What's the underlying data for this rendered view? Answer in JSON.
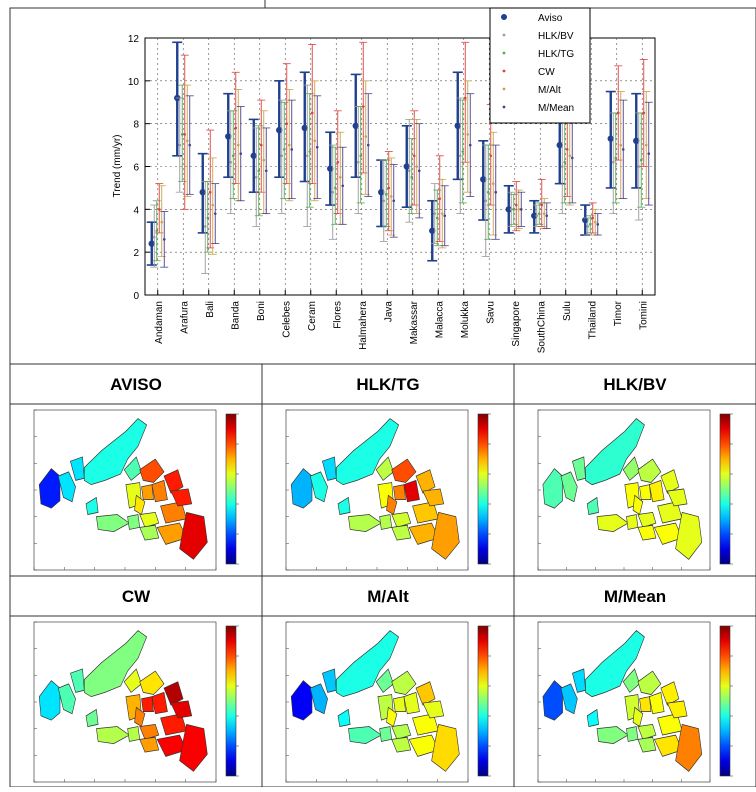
{
  "chart_data": [
    {
      "type": "errorbar",
      "ylabel": "Trend (mm/yr)",
      "ylim": [
        0,
        12
      ],
      "yticks": [
        0,
        2,
        4,
        6,
        8,
        10,
        12
      ],
      "grid": true,
      "legend_position": "top-right",
      "categories": [
        "Andaman",
        "Arafura",
        "Bali",
        "Banda",
        "Boni",
        "Celebes",
        "Ceram",
        "Flores",
        "Halmahera",
        "Java",
        "Makassar",
        "Malacca",
        "Molukka",
        "Savu",
        "Singapore",
        "SouthChina",
        "Sulu",
        "Thailand",
        "Timor",
        "Tomini"
      ],
      "series": [
        {
          "name": "Aviso",
          "color": "#1f3f8f",
          "values": [
            2.4,
            9.2,
            4.8,
            7.4,
            6.5,
            7.7,
            7.8,
            5.9,
            7.9,
            4.8,
            6.0,
            3.0,
            7.9,
            5.4,
            4.0,
            3.7,
            7.0,
            3.5,
            7.3,
            7.2
          ],
          "lower": [
            1.4,
            6.5,
            2.9,
            5.5,
            4.8,
            5.5,
            5.3,
            4.2,
            5.5,
            3.2,
            4.1,
            1.6,
            5.4,
            3.5,
            2.9,
            2.9,
            5.2,
            2.8,
            5.0,
            5.0
          ],
          "upper": [
            3.4,
            11.8,
            6.6,
            9.4,
            8.2,
            10.0,
            10.4,
            7.6,
            10.3,
            6.3,
            7.9,
            4.4,
            10.4,
            7.2,
            5.1,
            4.4,
            8.8,
            4.2,
            9.5,
            9.4
          ]
        },
        {
          "name": "HLK/BV",
          "color": "#9a9a9a",
          "values": [
            2.7,
            7.0,
            3.2,
            6.2,
            5.5,
            6.5,
            6.5,
            4.8,
            6.2,
            4.4,
            5.8,
            3.8,
            6.5,
            4.4,
            4.0,
            3.7,
            6.0,
            3.2,
            6.2,
            6.0
          ],
          "lower": [
            1.3,
            4.8,
            1.0,
            3.8,
            3.2,
            3.8,
            3.2,
            2.6,
            3.8,
            2.5,
            3.4,
            2.4,
            3.8,
            1.8,
            3.2,
            3.2,
            3.8,
            2.8,
            3.8,
            3.5
          ],
          "upper": [
            4.2,
            9.2,
            5.3,
            8.6,
            7.8,
            9.1,
            9.8,
            7.0,
            8.8,
            6.3,
            8.2,
            5.2,
            9.2,
            7.0,
            4.8,
            4.2,
            8.3,
            3.6,
            8.5,
            8.5
          ]
        },
        {
          "name": "HLK/TG",
          "color": "#55aa55",
          "values": [
            3.0,
            7.5,
            3.6,
            6.5,
            5.8,
            6.8,
            6.7,
            5.0,
            6.5,
            4.7,
            5.5,
            3.6,
            6.7,
            4.8,
            4.0,
            3.8,
            6.2,
            3.3,
            6.4,
            6.3
          ],
          "lower": [
            1.6,
            5.3,
            2.0,
            4.5,
            3.7,
            4.5,
            4.1,
            3.3,
            4.3,
            3.2,
            3.8,
            2.3,
            4.3,
            2.6,
            3.3,
            3.3,
            4.3,
            2.9,
            4.3,
            4.1
          ],
          "upper": [
            4.4,
            9.8,
            5.3,
            8.6,
            7.9,
            9.0,
            9.4,
            6.9,
            8.8,
            6.3,
            7.3,
            4.9,
            9.1,
            7.0,
            4.7,
            4.3,
            8.2,
            3.7,
            8.5,
            8.5
          ]
        },
        {
          "name": "CW",
          "color": "#e0403c",
          "values": [
            4.0,
            7.5,
            4.8,
            7.8,
            7.0,
            8.0,
            8.5,
            6.2,
            8.8,
            5.0,
            6.5,
            4.5,
            9.2,
            6.5,
            4.2,
            4.2,
            6.8,
            3.6,
            8.5,
            8.5
          ],
          "lower": [
            2.9,
            4.0,
            2.2,
            5.2,
            4.8,
            5.2,
            5.2,
            3.8,
            5.7,
            3.0,
            4.2,
            2.5,
            6.2,
            4.2,
            3.0,
            3.2,
            4.6,
            2.9,
            6.3,
            6.0
          ],
          "upper": [
            5.2,
            11.2,
            7.7,
            10.4,
            9.1,
            10.8,
            11.7,
            8.6,
            11.8,
            6.7,
            8.6,
            6.5,
            11.8,
            8.9,
            5.3,
            5.4,
            9.2,
            4.3,
            10.7,
            11.0
          ]
        },
        {
          "name": "M/Alt",
          "color": "#c9a24a",
          "values": [
            3.4,
            7.2,
            4.2,
            7.0,
            6.3,
            7.0,
            7.2,
            5.5,
            7.4,
            4.6,
            6.0,
            3.8,
            7.5,
            5.2,
            4.0,
            3.8,
            6.5,
            3.4,
            7.0,
            7.0
          ],
          "lower": [
            1.8,
            4.6,
            1.9,
            4.4,
            3.8,
            4.4,
            4.4,
            3.3,
            4.7,
            2.8,
            3.8,
            2.2,
            4.8,
            2.8,
            3.1,
            3.1,
            4.2,
            2.8,
            4.5,
            4.5
          ],
          "upper": [
            5.1,
            9.8,
            6.4,
            9.6,
            8.6,
            9.6,
            10.0,
            7.6,
            10.0,
            6.4,
            8.2,
            5.4,
            10.0,
            7.6,
            4.9,
            4.5,
            8.8,
            4.0,
            9.5,
            9.5
          ]
        },
        {
          "name": "M/Mean",
          "color": "#4b3f8f",
          "values": [
            2.6,
            7.0,
            3.8,
            6.6,
            5.8,
            6.8,
            6.9,
            5.1,
            7.0,
            4.4,
            5.8,
            3.7,
            7.0,
            4.8,
            4.0,
            3.7,
            6.4,
            3.3,
            6.8,
            6.6
          ],
          "lower": [
            1.3,
            4.7,
            2.4,
            4.4,
            3.8,
            4.5,
            4.5,
            3.3,
            4.6,
            2.7,
            3.6,
            2.3,
            4.6,
            2.6,
            3.2,
            3.1,
            4.3,
            2.8,
            4.5,
            4.2
          ],
          "upper": [
            3.9,
            9.3,
            5.2,
            8.8,
            7.8,
            9.1,
            9.3,
            6.9,
            9.4,
            6.1,
            8.0,
            5.1,
            9.4,
            7.0,
            4.8,
            4.3,
            8.5,
            3.8,
            9.1,
            9.0
          ]
        }
      ]
    },
    {
      "type": "map-panels",
      "panels": [
        {
          "title": "AVISO",
          "values": {
            "Andaman": 1.5,
            "Malacca": 3.5,
            "SouthChina": 4.0,
            "Thailand": 3.5,
            "Sulu": 4.5,
            "Celebes": 8.0,
            "Halmahera": 8.5,
            "Molukka": 7.5,
            "Tomini": 7.2,
            "Makassar": 6.0,
            "Java": 5.0,
            "Flores": 6.0,
            "Bali": 5.0,
            "Savu": 5.4,
            "Banda": 7.5,
            "Ceram": 8.5,
            "Timor": 7.2,
            "Arafura": 9.0,
            "Boni": 6.5,
            "Singapore": 4.0
          }
        },
        {
          "title": "HLK/TG",
          "values": {
            "Andaman": 3.0,
            "Malacca": 4.0,
            "SouthChina": 4.0,
            "Thailand": 3.4,
            "Sulu": 5.6,
            "Celebes": 8.0,
            "Halmahera": 7.0,
            "Molukka": 9.0,
            "Tomini": 7.5,
            "Makassar": 6.2,
            "Java": 5.5,
            "Flores": 5.8,
            "Bali": 5.5,
            "Savu": 5.6,
            "Banda": 6.8,
            "Ceram": 7.0,
            "Timor": 7.0,
            "Arafura": 7.2,
            "Boni": 7.5,
            "Singapore": 4.0
          }
        },
        {
          "title": "HLK/BV",
          "values": {
            "Andaman": 4.5,
            "Malacca": 4.8,
            "SouthChina": 4.2,
            "Thailand": 4.8,
            "Sulu": 5.2,
            "Celebes": 5.6,
            "Halmahera": 6.0,
            "Molukka": 6.4,
            "Tomini": 6.2,
            "Makassar": 6.2,
            "Java": 6.0,
            "Flores": 6.0,
            "Bali": 6.0,
            "Savu": 6.2,
            "Banda": 6.0,
            "Ceram": 6.0,
            "Timor": 6.2,
            "Arafura": 6.0,
            "Boni": 6.2,
            "Singapore": 4.5
          }
        },
        {
          "title": "CW",
          "values": {
            "Andaman": 3.5,
            "Malacca": 4.5,
            "SouthChina": 5.0,
            "Thailand": 4.5,
            "Sulu": 6.0,
            "Celebes": 6.5,
            "Halmahera": 9.5,
            "Molukka": 8.5,
            "Tomini": 8.5,
            "Makassar": 7.0,
            "Java": 5.5,
            "Flores": 7.5,
            "Bali": 5.5,
            "Savu": 7.2,
            "Banda": 8.5,
            "Ceram": 9.0,
            "Timor": 8.8,
            "Arafura": 8.8,
            "Boni": 7.5,
            "Singapore": 4.8
          }
        },
        {
          "title": "M/Alt",
          "values": {
            "Andaman": 1.2,
            "Malacca": 3.0,
            "SouthChina": 4.0,
            "Thailand": 3.2,
            "Sulu": 4.8,
            "Celebes": 5.6,
            "Halmahera": 6.8,
            "Molukka": 6.0,
            "Tomini": 6.0,
            "Makassar": 5.6,
            "Java": 4.5,
            "Flores": 5.5,
            "Bali": 4.8,
            "Savu": 5.6,
            "Banda": 6.2,
            "Ceram": 6.0,
            "Timor": 6.2,
            "Arafura": 6.6,
            "Boni": 6.2,
            "Singapore": 3.8
          }
        },
        {
          "title": "M/Mean",
          "values": {
            "Andaman": 2.0,
            "Malacca": 3.2,
            "SouthChina": 4.0,
            "Thailand": 3.4,
            "Sulu": 5.0,
            "Celebes": 5.6,
            "Halmahera": 6.4,
            "Molukka": 6.2,
            "Tomini": 6.5,
            "Makassar": 5.8,
            "Java": 5.0,
            "Flores": 5.6,
            "Bali": 5.0,
            "Savu": 5.4,
            "Banda": 6.2,
            "Ceram": 6.4,
            "Timor": 6.5,
            "Arafura": 7.5,
            "Boni": 6.0,
            "Singapore": 3.8
          }
        }
      ],
      "colorbar_range": [
        0,
        10
      ],
      "colormap": "jet"
    }
  ]
}
